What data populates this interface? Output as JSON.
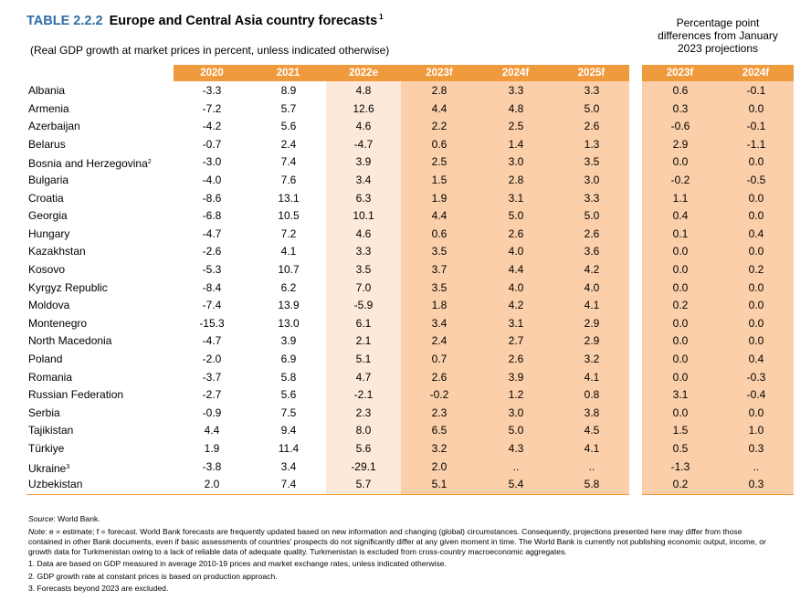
{
  "title": {
    "number": "TABLE 2.2.2",
    "text": "Europe and Central Asia country forecasts",
    "sup": "1"
  },
  "subtitle": "(Real GDP growth at market prices in percent, unless indicated otherwise)",
  "ppd_header": [
    "Percentage point",
    "differences from January",
    "2023 projections"
  ],
  "columns": [
    "2020",
    "2021",
    "2022e",
    "2023f",
    "2024f",
    "2025f"
  ],
  "diff_columns": [
    "2023f",
    "2024f"
  ],
  "rows": [
    {
      "country": "Albania",
      "sup": "",
      "values": [
        "-3.3",
        "8.9",
        "4.8",
        "2.8",
        "3.3",
        "3.3"
      ],
      "diff": [
        "0.6",
        "-0.1"
      ]
    },
    {
      "country": "Armenia",
      "sup": "",
      "values": [
        "-7.2",
        "5.7",
        "12.6",
        "4.4",
        "4.8",
        "5.0"
      ],
      "diff": [
        "0.3",
        "0.0"
      ]
    },
    {
      "country": "Azerbaijan",
      "sup": "",
      "values": [
        "-4.2",
        "5.6",
        "4.6",
        "2.2",
        "2.5",
        "2.6"
      ],
      "diff": [
        "-0.6",
        "-0.1"
      ]
    },
    {
      "country": "Belarus",
      "sup": "",
      "values": [
        "-0.7",
        "2.4",
        "-4.7",
        "0.6",
        "1.4",
        "1.3"
      ],
      "diff": [
        "2.9",
        "-1.1"
      ]
    },
    {
      "country": "Bosnia and Herzegovina",
      "sup": "2",
      "values": [
        "-3.0",
        "7.4",
        "3.9",
        "2.5",
        "3.0",
        "3.5"
      ],
      "diff": [
        "0.0",
        "0.0"
      ]
    },
    {
      "country": "Bulgaria",
      "sup": "",
      "values": [
        "-4.0",
        "7.6",
        "3.4",
        "1.5",
        "2.8",
        "3.0"
      ],
      "diff": [
        "-0.2",
        "-0.5"
      ]
    },
    {
      "country": "Croatia",
      "sup": "",
      "values": [
        "-8.6",
        "13.1",
        "6.3",
        "1.9",
        "3.1",
        "3.3"
      ],
      "diff": [
        "1.1",
        "0.0"
      ]
    },
    {
      "country": "Georgia",
      "sup": "",
      "values": [
        "-6.8",
        "10.5",
        "10.1",
        "4.4",
        "5.0",
        "5.0"
      ],
      "diff": [
        "0.4",
        "0.0"
      ]
    },
    {
      "country": "Hungary",
      "sup": "",
      "values": [
        "-4.7",
        "7.2",
        "4.6",
        "0.6",
        "2.6",
        "2.6"
      ],
      "diff": [
        "0.1",
        "0.4"
      ]
    },
    {
      "country": "Kazakhstan",
      "sup": "",
      "values": [
        "-2.6",
        "4.1",
        "3.3",
        "3.5",
        "4.0",
        "3.6"
      ],
      "diff": [
        "0.0",
        "0.0"
      ]
    },
    {
      "country": "Kosovo",
      "sup": "",
      "values": [
        "-5.3",
        "10.7",
        "3.5",
        "3.7",
        "4.4",
        "4.2"
      ],
      "diff": [
        "0.0",
        "0.2"
      ]
    },
    {
      "country": "Kyrgyz Republic",
      "sup": "",
      "values": [
        "-8.4",
        "6.2",
        "7.0",
        "3.5",
        "4.0",
        "4.0"
      ],
      "diff": [
        "0.0",
        "0.0"
      ]
    },
    {
      "country": "Moldova",
      "sup": "",
      "values": [
        "-7.4",
        "13.9",
        "-5.9",
        "1.8",
        "4.2",
        "4.1"
      ],
      "diff": [
        "0.2",
        "0.0"
      ]
    },
    {
      "country": "Montenegro",
      "sup": "",
      "values": [
        "-15.3",
        "13.0",
        "6.1",
        "3.4",
        "3.1",
        "2.9"
      ],
      "diff": [
        "0.0",
        "0.0"
      ]
    },
    {
      "country": "North Macedonia",
      "sup": "",
      "values": [
        "-4.7",
        "3.9",
        "2.1",
        "2.4",
        "2.7",
        "2.9"
      ],
      "diff": [
        "0.0",
        "0.0"
      ]
    },
    {
      "country": "Poland",
      "sup": "",
      "values": [
        "-2.0",
        "6.9",
        "5.1",
        "0.7",
        "2.6",
        "3.2"
      ],
      "diff": [
        "0.0",
        "0.4"
      ]
    },
    {
      "country": "Romania",
      "sup": "",
      "values": [
        "-3.7",
        "5.8",
        "4.7",
        "2.6",
        "3.9",
        "4.1"
      ],
      "diff": [
        "0.0",
        "-0.3"
      ]
    },
    {
      "country": "Russian Federation",
      "sup": "",
      "values": [
        "-2.7",
        "5.6",
        "-2.1",
        "-0.2",
        "1.2",
        "0.8"
      ],
      "diff": [
        "3.1",
        "-0.4"
      ]
    },
    {
      "country": "Serbia",
      "sup": "",
      "values": [
        "-0.9",
        "7.5",
        "2.3",
        "2.3",
        "3.0",
        "3.8"
      ],
      "diff": [
        "0.0",
        "0.0"
      ]
    },
    {
      "country": "Tajikistan",
      "sup": "",
      "values": [
        "4.4",
        "9.4",
        "8.0",
        "6.5",
        "5.0",
        "4.5"
      ],
      "diff": [
        "1.5",
        "1.0"
      ]
    },
    {
      "country": "Türkiye",
      "sup": "",
      "values": [
        "1.9",
        "11.4",
        "5.6",
        "3.2",
        "4.3",
        "4.1"
      ],
      "diff": [
        "0.5",
        "0.3"
      ]
    },
    {
      "country": "Ukraine",
      "sup": "3",
      "values": [
        "-3.8",
        "3.4",
        "-29.1",
        "2.0",
        "..",
        ".."
      ],
      "diff": [
        "-1.3",
        ".."
      ]
    },
    {
      "country": "Uzbekistan",
      "sup": "",
      "values": [
        "2.0",
        "7.4",
        "5.7",
        "5.1",
        "5.4",
        "5.8"
      ],
      "diff": [
        "0.2",
        "0.3"
      ]
    }
  ],
  "notes": {
    "source_label": "Source",
    "source_text": ": World Bank.",
    "note_label": "Note",
    "note_text": ": e = estimate; f = forecast. World Bank forecasts are frequently updated based on new information and changing (global) circumstances. Consequently, projections presented here may differ from those contained in other Bank documents, even if basic assessments of countries’ prospects do not significantly differ at any given moment in time. The World Bank is currently not publishing economic output, income, or growth data for Turkmenistan owing to a lack of reliable data of adequate quality. Turkmenistan is excluded from cross-country macroeconomic aggregates.",
    "footnotes": [
      "1. Data are based on GDP measured in average 2010-19 prices and market exchange rates, unless indicated otherwise.",
      "2. GDP growth rate at constant prices is based on production approach.",
      "3. Forecasts beyond 2023 are excluded."
    ]
  },
  "colors": {
    "header": "#f09a3e",
    "estimate_shade": "#fde9d9",
    "forecast_shade": "#fbcfa9",
    "title_number": "#2e6ea6"
  }
}
